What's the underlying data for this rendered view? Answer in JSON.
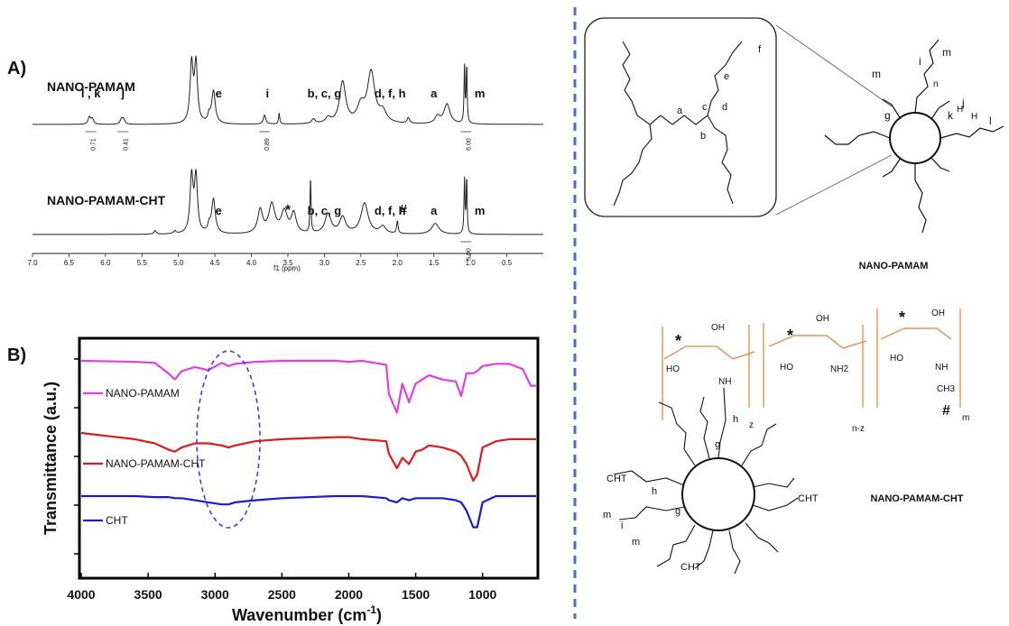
{
  "panels": {
    "a_label": "A)",
    "b_label": "B)"
  },
  "colors": {
    "divider": "#4472c4",
    "orange": "#ed7d31",
    "pamam_ftir": "#e23ee2",
    "cht_pamam_ftir": "#e0191a",
    "cht_ftir": "#1c1ad0",
    "ellipse": "#3344dd"
  },
  "nmr": {
    "axis_label": "f1 (ppm)",
    "ticks": [
      "7.0",
      "6.5",
      "6.0",
      "5.5",
      "5.0",
      "4.5",
      "4.0",
      "3.5",
      "3.0",
      "2.5",
      "2.0",
      "1.5",
      "1.0",
      "0.5"
    ],
    "spectra": [
      {
        "name": "NANO-PAMAM",
        "peaks": [
          {
            "ppm": 6.22,
            "h": 8,
            "w": 0.02
          },
          {
            "ppm": 6.18,
            "h": 6,
            "w": 0.02
          },
          {
            "ppm": 5.78,
            "h": 6,
            "w": 0.02
          },
          {
            "ppm": 5.75,
            "h": 5,
            "w": 0.02
          },
          {
            "ppm": 4.82,
            "h": 65,
            "w": 0.025
          },
          {
            "ppm": 4.76,
            "h": 65,
            "w": 0.025
          },
          {
            "ppm": 4.52,
            "h": 36,
            "w": 0.03
          },
          {
            "ppm": 4.58,
            "h": 8,
            "w": 0.02
          },
          {
            "ppm": 3.82,
            "h": 10,
            "w": 0.02
          },
          {
            "ppm": 3.62,
            "h": 12,
            "w": 0.01
          },
          {
            "ppm": 3.15,
            "h": 5,
            "w": 0.03
          },
          {
            "ppm": 2.95,
            "h": 6,
            "w": 0.04
          },
          {
            "ppm": 2.75,
            "h": 46,
            "w": 0.05
          },
          {
            "ppm": 2.5,
            "h": 18,
            "w": 0.06
          },
          {
            "ppm": 2.36,
            "h": 56,
            "w": 0.06
          },
          {
            "ppm": 2.2,
            "h": 12,
            "w": 0.06
          },
          {
            "ppm": 1.85,
            "h": 6,
            "w": 0.02
          },
          {
            "ppm": 1.45,
            "h": 8,
            "w": 0.04
          },
          {
            "ppm": 1.32,
            "h": 22,
            "w": 0.05
          },
          {
            "ppm": 1.08,
            "h": 62,
            "w": 0.008
          },
          {
            "ppm": 1.05,
            "h": 62,
            "w": 0.008
          }
        ],
        "integrals": [
          {
            "ppm": 6.2,
            "label": "0.71"
          },
          {
            "ppm": 5.76,
            "label": "0.41"
          },
          {
            "ppm": 3.82,
            "label": "0.89"
          },
          {
            "ppm": 1.06,
            "label": "6.00"
          }
        ],
        "peak_labels": [
          {
            "ppm": 6.2,
            "text": "l , k"
          },
          {
            "ppm": 5.76,
            "text": "j"
          },
          {
            "ppm": 4.45,
            "text": "e"
          },
          {
            "ppm": 3.78,
            "text": "i"
          },
          {
            "ppm": 3.0,
            "text": "b, c, g"
          },
          {
            "ppm": 2.1,
            "text": "d, f, h"
          },
          {
            "ppm": 1.5,
            "text": "a"
          },
          {
            "ppm": 0.87,
            "text": "m"
          }
        ]
      },
      {
        "name": "NANO-PAMAM-CHT",
        "peaks": [
          {
            "ppm": 5.32,
            "h": 4,
            "w": 0.02
          },
          {
            "ppm": 5.05,
            "h": 3,
            "w": 0.02
          },
          {
            "ppm": 4.82,
            "h": 62,
            "w": 0.025
          },
          {
            "ppm": 4.76,
            "h": 62,
            "w": 0.025
          },
          {
            "ppm": 4.52,
            "h": 38,
            "w": 0.03
          },
          {
            "ppm": 4.58,
            "h": 8,
            "w": 0.02
          },
          {
            "ppm": 3.88,
            "h": 26,
            "w": 0.04
          },
          {
            "ppm": 3.72,
            "h": 32,
            "w": 0.05
          },
          {
            "ppm": 3.55,
            "h": 24,
            "w": 0.05
          },
          {
            "ppm": 3.42,
            "h": 22,
            "w": 0.04
          },
          {
            "ppm": 3.19,
            "h": 60,
            "w": 0.008
          },
          {
            "ppm": 2.95,
            "h": 22,
            "w": 0.05
          },
          {
            "ppm": 2.75,
            "h": 18,
            "w": 0.05
          },
          {
            "ppm": 2.45,
            "h": 34,
            "w": 0.06
          },
          {
            "ppm": 2.2,
            "h": 8,
            "w": 0.05
          },
          {
            "ppm": 2.0,
            "h": 14,
            "w": 0.012
          },
          {
            "ppm": 1.48,
            "h": 12,
            "w": 0.06
          },
          {
            "ppm": 1.08,
            "h": 60,
            "w": 0.008
          },
          {
            "ppm": 1.05,
            "h": 60,
            "w": 0.008
          }
        ],
        "integrals": [
          {
            "ppm": 1.06,
            "label": "6.00"
          }
        ],
        "peak_labels": [
          {
            "ppm": 4.45,
            "text": "e"
          },
          {
            "ppm": 3.5,
            "text": "*"
          },
          {
            "ppm": 3.0,
            "text": "b, c, g"
          },
          {
            "ppm": 2.1,
            "text": "d, f, h"
          },
          {
            "ppm": 1.92,
            "text": "#"
          },
          {
            "ppm": 1.5,
            "text": "a"
          },
          {
            "ppm": 0.87,
            "text": "m"
          }
        ]
      }
    ]
  },
  "chart_data": {
    "type": "line",
    "title": "",
    "xlabel": "Wavenumber (cm-1)",
    "ylabel": "Transmittance (a.u.)",
    "xlim": [
      4000,
      600
    ],
    "x_ticks": [
      4000,
      3500,
      3000,
      2500,
      2000,
      1500,
      1000
    ],
    "x": [
      4000,
      3600,
      3450,
      3350,
      3300,
      3250,
      3150,
      3050,
      2950,
      2900,
      2850,
      2700,
      2500,
      2100,
      2000,
      1900,
      1720,
      1700,
      1640,
      1600,
      1550,
      1500,
      1450,
      1400,
      1300,
      1200,
      1160,
      1120,
      1070,
      1040,
      1000,
      900,
      800,
      700,
      640,
      600
    ],
    "series": [
      {
        "name": "NANO-PAMAM",
        "y": [
          0,
          -1,
          -2,
          -12,
          -18,
          -10,
          -6,
          -9,
          -2,
          -5,
          -3,
          -1,
          0,
          0,
          -1,
          0,
          -4,
          -32,
          -50,
          -22,
          -40,
          -22,
          -18,
          -14,
          -18,
          -20,
          -34,
          -12,
          -12,
          -10,
          -5,
          -3,
          -3,
          -8,
          -24,
          -24
        ]
      },
      {
        "name": "NANO-PAMAM-CHT",
        "y": [
          0,
          -6,
          -10,
          -16,
          -18,
          -14,
          -10,
          -10,
          -12,
          -14,
          -12,
          -8,
          -6,
          -4,
          -4,
          -6,
          -8,
          -20,
          -34,
          -24,
          -30,
          -18,
          -16,
          -12,
          -14,
          -18,
          -22,
          -30,
          -46,
          -40,
          -14,
          -8,
          -6,
          -6,
          -6,
          -6
        ]
      },
      {
        "name": "CHT",
        "y": [
          0,
          0,
          -1,
          -1,
          -2,
          -2,
          -4,
          -6,
          -8,
          -8,
          -6,
          -4,
          -2,
          0,
          0,
          0,
          -2,
          -4,
          -6,
          -2,
          -4,
          -2,
          -2,
          -2,
          -2,
          -4,
          -6,
          -14,
          -30,
          -30,
          -6,
          0,
          0,
          0,
          0,
          0
        ]
      }
    ],
    "legend_position": "left, next to each trace",
    "annotations": [
      "dashed ellipse around ~2900 cm-1"
    ],
    "grid": false
  },
  "structures": {
    "pamam_label": "NANO-PAMAM",
    "cht_label": "NANO-PAMAM-CHT",
    "inset_labels": [
      "e",
      "f",
      "a",
      "c",
      "d",
      "b"
    ],
    "ring_labels": [
      "m",
      "i",
      "m",
      "n",
      "g",
      "j",
      "k",
      "H",
      "H",
      "l"
    ],
    "chitosan": {
      "oh": "OH",
      "ho": "HO",
      "nh2": "NH2",
      "nh": "NH",
      "ch3": "CH3",
      "z": "z",
      "nz": "n-z",
      "m": "m",
      "star": "*",
      "hash": "#"
    },
    "cht_side": "CHT",
    "dendron_letters": [
      "h",
      "g",
      "i",
      "m",
      "h",
      "g",
      "m"
    ]
  }
}
